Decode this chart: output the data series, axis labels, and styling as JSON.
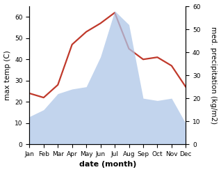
{
  "months": [
    "Jan",
    "Feb",
    "Mar",
    "Apr",
    "May",
    "Jun",
    "Jul",
    "Aug",
    "Sep",
    "Oct",
    "Nov",
    "Dec"
  ],
  "temperature": [
    24,
    22,
    28,
    47,
    53,
    57,
    62,
    45,
    40,
    41,
    37,
    27
  ],
  "precipitation": [
    12,
    15,
    22,
    24,
    25,
    38,
    58,
    52,
    20,
    19,
    20,
    9
  ],
  "temp_color": "#c0392b",
  "precip_color": "#aec6e8",
  "precip_alpha": 0.75,
  "temp_ylim": [
    0,
    65
  ],
  "precip_ylim": [
    0,
    60
  ],
  "left_yticks": [
    0,
    10,
    20,
    30,
    40,
    50,
    60
  ],
  "right_yticks": [
    0,
    10,
    20,
    30,
    40,
    50,
    60
  ],
  "xlabel": "date (month)",
  "ylabel_left": "max temp (C)",
  "ylabel_right": "med. precipitation (kg/m2)",
  "xlabel_fontsize": 8,
  "ylabel_fontsize": 7.5,
  "tick_fontsize": 6.5,
  "linewidth": 1.6
}
